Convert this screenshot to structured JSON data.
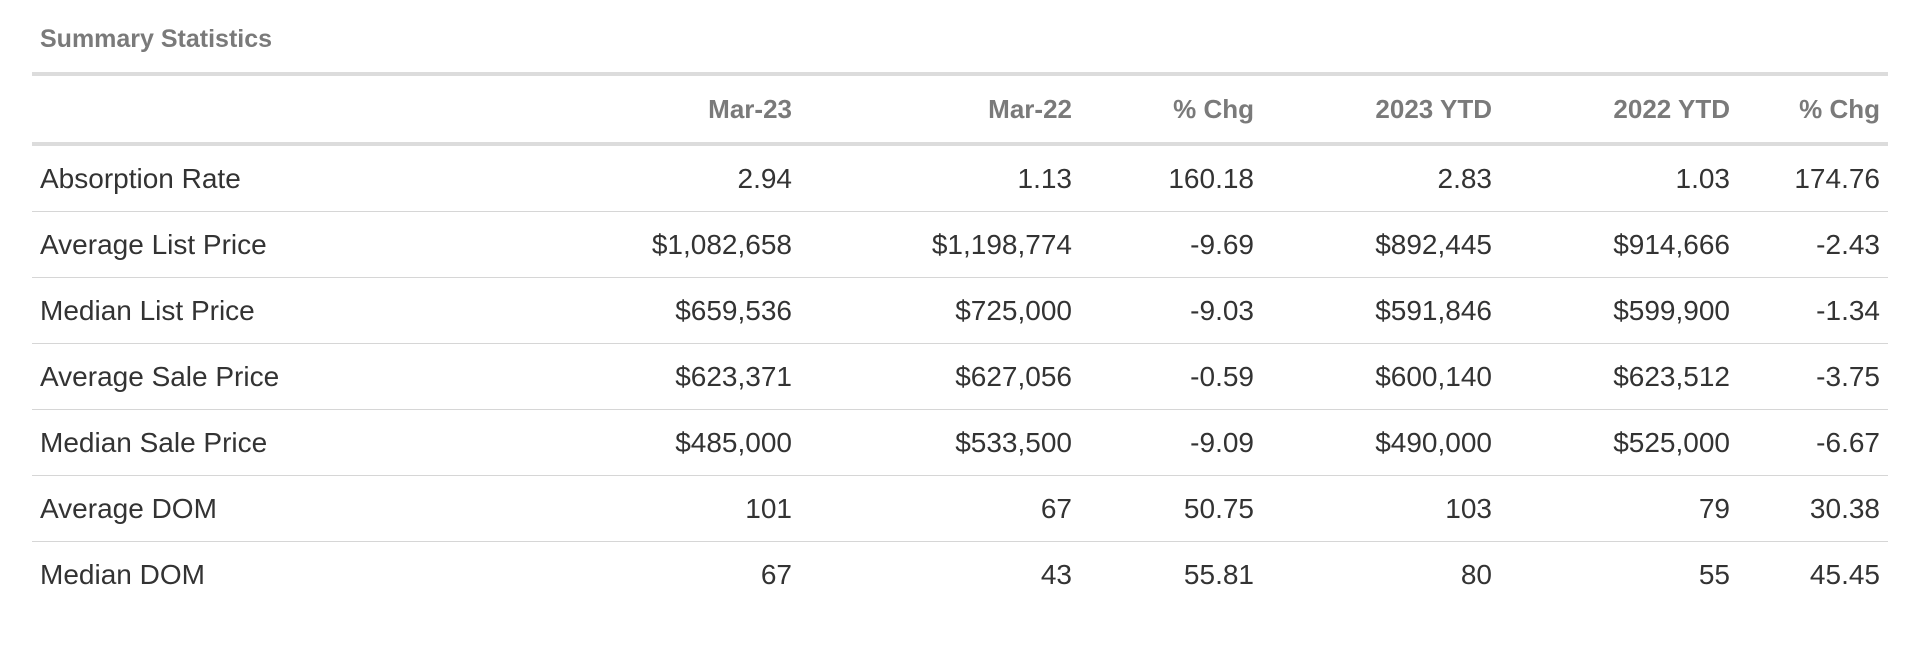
{
  "table": {
    "title": "Summary Statistics",
    "columns": [
      "",
      "Mar-23",
      "Mar-22",
      "% Chg",
      "2023 YTD",
      "2022 YTD",
      "% Chg"
    ],
    "rows": [
      {
        "label": "Absorption Rate",
        "values": [
          "2.94",
          "1.13",
          "160.18",
          "2.83",
          "1.03",
          "174.76"
        ]
      },
      {
        "label": "Average List Price",
        "values": [
          "$1,082,658",
          "$1,198,774",
          "-9.69",
          "$892,445",
          "$914,666",
          "-2.43"
        ]
      },
      {
        "label": "Median List Price",
        "values": [
          "$659,536",
          "$725,000",
          "-9.03",
          "$591,846",
          "$599,900",
          "-1.34"
        ]
      },
      {
        "label": "Average Sale Price",
        "values": [
          "$623,371",
          "$627,056",
          "-0.59",
          "$600,140",
          "$623,512",
          "-3.75"
        ]
      },
      {
        "label": "Median Sale Price",
        "values": [
          "$485,000",
          "$533,500",
          "-9.09",
          "$490,000",
          "$525,000",
          "-6.67"
        ]
      },
      {
        "label": "Average DOM",
        "values": [
          "101",
          "67",
          "50.75",
          "103",
          "79",
          "30.38"
        ]
      },
      {
        "label": "Median DOM",
        "values": [
          "67",
          "43",
          "55.81",
          "80",
          "55",
          "45.45"
        ]
      }
    ]
  }
}
